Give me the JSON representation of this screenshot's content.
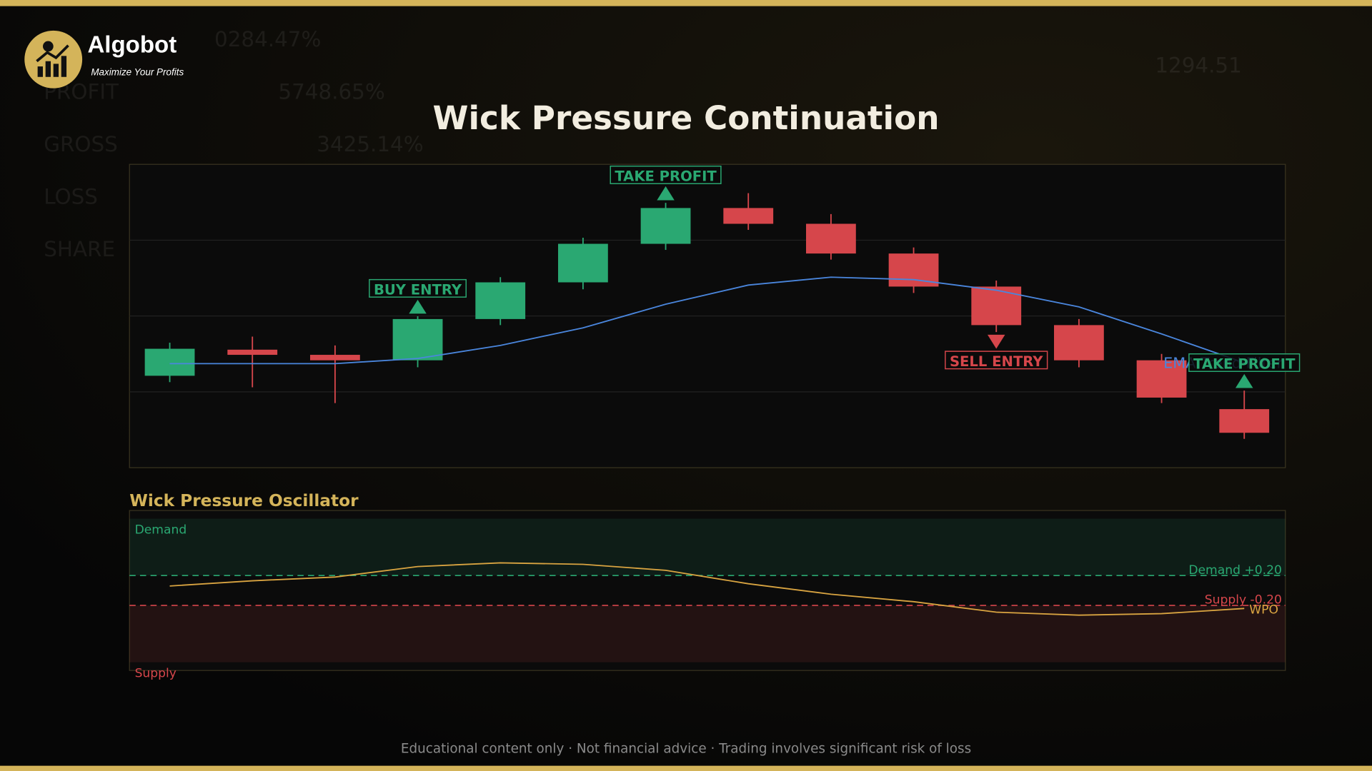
{
  "brand": {
    "name": "Algobot",
    "tagline": "Maximize Your Profits"
  },
  "background_text": [
    "0284.47%",
    "PROFIT",
    "5748.65%",
    "GROSS",
    "3425.14%",
    "LOSS",
    "SHARE",
    "1294.51"
  ],
  "chart_data": [
    {
      "type": "candlestick",
      "title": "Wick Pressure Continuation",
      "open": [
        30.3,
        38.9,
        37.2,
        35.4,
        49.0,
        61.1,
        73.8,
        85.6,
        80.4,
        70.6,
        59.7,
        47.0,
        35.4,
        19.3
      ],
      "high": [
        41.2,
        43.2,
        40.3,
        49.9,
        62.8,
        75.8,
        87.3,
        90.5,
        83.6,
        72.6,
        61.7,
        49.0,
        37.5,
        25.4
      ],
      "low": [
        28.2,
        26.5,
        21.3,
        33.1,
        47.0,
        58.8,
        71.8,
        78.4,
        68.6,
        57.6,
        44.7,
        33.1,
        21.3,
        9.5
      ],
      "close": [
        39.2,
        37.2,
        35.4,
        49.0,
        61.1,
        73.8,
        85.6,
        80.4,
        70.6,
        59.7,
        47.0,
        35.4,
        23.1,
        11.5
      ],
      "up_color": "#2aa872",
      "down_color": "#d6464b",
      "series": [
        {
          "name": "EMA Trend Filter",
          "color": "#4a86dd",
          "values": [
            34.3,
            34.3,
            34.3,
            36.0,
            40.3,
            46.1,
            53.9,
            60.2,
            62.8,
            62.0,
            58.5,
            53.0,
            44.1,
            34.6
          ]
        }
      ],
      "signals": [
        {
          "label": "BUY ENTRY",
          "index": 3,
          "direction": "up",
          "color": "#2aa872"
        },
        {
          "label": "TAKE PROFIT",
          "index": 6,
          "direction": "up",
          "color": "#2aa872"
        },
        {
          "label": "SELL ENTRY",
          "index": 10,
          "direction": "down",
          "color": "#d6464b"
        },
        {
          "label": "TAKE PROFIT",
          "index": 13,
          "direction": "up",
          "color": "#2aa872"
        }
      ],
      "ylim": [
        0,
        100
      ],
      "yticks": [
        25,
        50,
        75
      ],
      "grid": true
    },
    {
      "type": "line",
      "title": "Wick Pressure Oscillator",
      "series": [
        {
          "name": "WPO",
          "color": "#d9a441",
          "values": [
            0.06,
            0.13,
            0.18,
            0.32,
            0.37,
            0.35,
            0.27,
            0.09,
            -0.05,
            -0.15,
            -0.29,
            -0.33,
            -0.31,
            -0.24
          ]
        }
      ],
      "thresholds": [
        {
          "value": 0.2,
          "label": "Demand +0.20",
          "color": "#2aa872"
        },
        {
          "value": -0.2,
          "label": "Supply -0.20",
          "color": "#d6464b"
        }
      ],
      "zones": [
        {
          "label": "Demand",
          "from": 0.2,
          "to": 0.96,
          "color": "#2aa872"
        },
        {
          "label": "Supply",
          "from": -0.96,
          "to": -0.2,
          "color": "#d6464b"
        }
      ],
      "ylim": [
        -1.07,
        1.07
      ]
    }
  ],
  "footer": "Educational content only  ·  Not financial advice  ·  Trading involves significant risk of loss"
}
